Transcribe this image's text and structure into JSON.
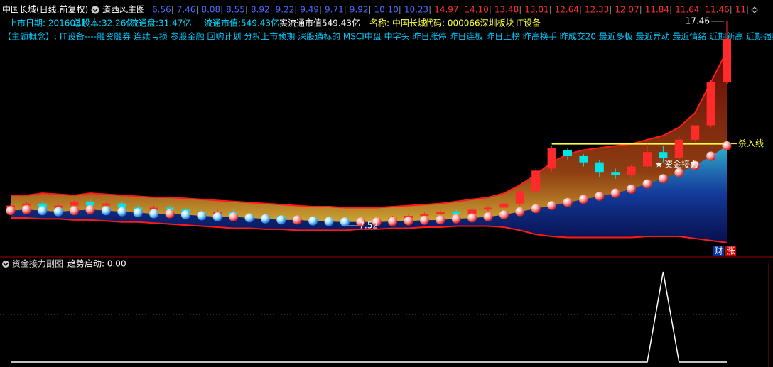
{
  "header": {
    "title": "中国长城(日线,前复权)",
    "indicator": "道西风主图",
    "ladder_low": [
      "6.56",
      "7.46",
      "8.08",
      "8.55",
      "8.92",
      "9.22",
      "9.49",
      "9.71",
      "9.92",
      "10.10",
      "10.23"
    ],
    "ladder_high": [
      "14.97",
      "14.10",
      "13.48",
      "13.01",
      "12.64",
      "12.33",
      "12.07",
      "11.84",
      "11.64",
      "11.46",
      "11"
    ],
    "ladder_low_color": "#4a6cff",
    "ladder_high_color": "#ff3030"
  },
  "info": [
    {
      "text": "上市日期: 2016031",
      "color": "#00d8ff"
    },
    {
      "text": "总股本:32.26亿",
      "color": "#00d8ff"
    },
    {
      "text": "流通盘:31.47亿",
      "color": "#00d8ff"
    },
    {
      "text": "流通市值:549.43亿",
      "color": "#00d8ff"
    },
    {
      "text": "实流通市值549.43亿",
      "color": "#ffffff"
    },
    {
      "text": "名称: 中国长城",
      "color": "#ffff40"
    },
    {
      "text": "代码: 000066深圳板块",
      "color": "#ffff40"
    },
    {
      "text": "IT设备",
      "color": "#ffff40"
    }
  ],
  "concept": "【主题概念】: IT设备----融资融券 连续亏损 参股金融 回购计划 分拆上市预期 深股通标的 MSCI中盘 中字头 昨日涨停 昨日连板 昨日上榜 昨高换手 昨成交20 最近多板 最近异动 最近情绪 近期新高 近期强势",
  "chart_data": [
    {
      "type": "candlestick",
      "ylim": [
        6.07,
        17.8
      ],
      "up_color": "#ff2a2a",
      "down_color": "#00e5e5",
      "candles": {
        "open": [
          8.4,
          8.5,
          8.6,
          8.4,
          8.5,
          8.7,
          8.5,
          8.6,
          8.4,
          8.3,
          8.4,
          8.3,
          8.2,
          8.1,
          8.2,
          8.0,
          7.9,
          8.0,
          7.8,
          7.9,
          7.7,
          7.8,
          7.6,
          7.7,
          7.8,
          7.9,
          8.0,
          8.1,
          8.2,
          8.1,
          8.3,
          8.4,
          8.6,
          9.2,
          10.3,
          11.2,
          10.9,
          10.6,
          10.1,
          10.0,
          10.4,
          11.1,
          10.8,
          11.7,
          12.4,
          14.5
        ],
        "high": [
          8.6,
          8.7,
          8.7,
          8.6,
          8.8,
          8.8,
          8.7,
          8.7,
          8.5,
          8.5,
          8.5,
          8.4,
          8.3,
          8.3,
          8.3,
          8.1,
          8.1,
          8.1,
          8.0,
          8.0,
          7.9,
          7.9,
          7.8,
          7.9,
          8.0,
          8.1,
          8.2,
          8.3,
          8.3,
          8.4,
          8.5,
          8.7,
          9.3,
          10.3,
          11.4,
          11.3,
          11.0,
          10.7,
          10.3,
          10.5,
          11.5,
          11.4,
          11.9,
          12.1,
          14.6,
          17.46
        ],
        "low": [
          8.3,
          8.4,
          8.3,
          8.3,
          8.4,
          8.4,
          8.4,
          8.3,
          8.2,
          8.2,
          8.2,
          8.1,
          8.0,
          8.0,
          7.9,
          7.8,
          7.8,
          7.7,
          7.7,
          7.6,
          7.6,
          7.52,
          7.55,
          7.6,
          7.7,
          7.8,
          7.9,
          8.0,
          8.0,
          8.0,
          8.2,
          8.3,
          8.5,
          9.1,
          10.1,
          10.7,
          10.4,
          9.9,
          9.8,
          9.9,
          10.3,
          10.6,
          10.7,
          11.6,
          12.3,
          14.4
        ],
        "close": [
          8.5,
          8.6,
          8.4,
          8.5,
          8.7,
          8.5,
          8.6,
          8.4,
          8.3,
          8.4,
          8.3,
          8.2,
          8.1,
          8.2,
          8.0,
          7.9,
          8.0,
          7.8,
          7.9,
          7.7,
          7.8,
          7.6,
          7.7,
          7.8,
          7.9,
          8.0,
          8.1,
          8.2,
          8.1,
          8.3,
          8.4,
          8.6,
          9.2,
          10.2,
          11.3,
          10.9,
          10.6,
          10.1,
          10.0,
          10.4,
          11.1,
          10.8,
          11.7,
          12.4,
          14.5,
          16.6
        ]
      },
      "upper_band": {
        "color": "#ff1a1a",
        "values": [
          9.0,
          9.0,
          9.1,
          9.05,
          9.0,
          9.1,
          9.05,
          9.0,
          8.95,
          8.9,
          8.9,
          8.85,
          8.8,
          8.75,
          8.7,
          8.65,
          8.6,
          8.55,
          8.5,
          8.45,
          8.45,
          8.4,
          8.4,
          8.4,
          8.45,
          8.5,
          8.55,
          8.6,
          8.7,
          8.8,
          8.9,
          9.1,
          9.5,
          10.0,
          10.6,
          11.0,
          11.2,
          11.3,
          11.4,
          11.5,
          11.7,
          11.9,
          12.3,
          13.0,
          14.5,
          16.0
        ]
      },
      "lower_band": {
        "color": "#ff1a1a",
        "values": [
          7.9,
          7.9,
          7.85,
          7.85,
          7.8,
          7.8,
          7.75,
          7.7,
          7.7,
          7.65,
          7.6,
          7.55,
          7.5,
          7.45,
          7.4,
          7.4,
          7.35,
          7.35,
          7.3,
          7.3,
          7.3,
          7.3,
          7.35,
          7.35,
          7.4,
          7.4,
          7.45,
          7.45,
          7.5,
          7.5,
          7.5,
          7.45,
          7.3,
          7.1,
          7.0,
          6.95,
          6.95,
          6.95,
          6.95,
          6.95,
          7.0,
          7.0,
          7.0,
          6.9,
          6.8,
          6.7
        ]
      },
      "support": {
        "up_color": "#ff3a3a",
        "down_color": "#2ec8ff",
        "values": [
          8.25,
          8.3,
          8.25,
          8.2,
          8.25,
          8.3,
          8.25,
          8.2,
          8.15,
          8.1,
          8.1,
          8.05,
          8.0,
          7.95,
          7.95,
          7.9,
          7.85,
          7.8,
          7.8,
          7.75,
          7.72,
          7.7,
          7.7,
          7.7,
          7.72,
          7.75,
          7.78,
          7.8,
          7.85,
          7.9,
          7.95,
          8.05,
          8.2,
          8.35,
          8.5,
          8.65,
          8.8,
          8.95,
          9.1,
          9.3,
          9.55,
          9.8,
          10.1,
          10.45,
          10.9,
          11.4
        ]
      },
      "kill_line": {
        "label": "杀入线",
        "color": "#ffff40",
        "values": [
          null,
          null,
          null,
          null,
          null,
          null,
          null,
          null,
          null,
          null,
          null,
          null,
          null,
          null,
          null,
          null,
          null,
          null,
          null,
          null,
          null,
          null,
          null,
          null,
          null,
          null,
          null,
          null,
          null,
          null,
          null,
          null,
          null,
          null,
          11.5,
          11.5,
          11.5,
          11.5,
          11.5,
          11.5,
          11.5,
          11.5,
          11.5,
          11.5,
          11.5,
          11.5
        ]
      },
      "annotation": "资金接力",
      "badges": [
        "财",
        "涨"
      ]
    },
    {
      "type": "line",
      "title": "资金接力副图",
      "readout": "趋势启动: 0.00",
      "ylim": [
        0,
        1
      ],
      "color": "#ffffff",
      "values": [
        0,
        0,
        0,
        0,
        0,
        0,
        0,
        0,
        0,
        0,
        0,
        0,
        0,
        0,
        0,
        0,
        0,
        0,
        0,
        0,
        0,
        0,
        0,
        0,
        0,
        0,
        0,
        0,
        0,
        0,
        0,
        0,
        0,
        0,
        0,
        0,
        0,
        0,
        0,
        0,
        0,
        1,
        0,
        0,
        0,
        0
      ]
    }
  ]
}
